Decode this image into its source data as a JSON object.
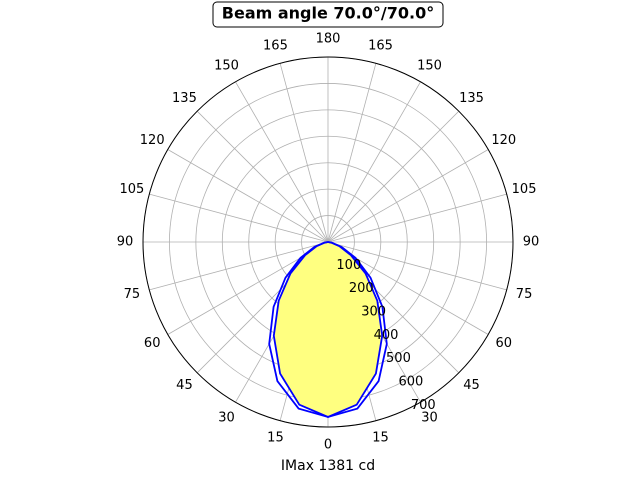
{
  "chart_data": {
    "type": "polar",
    "title": "Beam angle 70.0°/70.0°",
    "x_label": "IMax 1381 cd",
    "x": [
      -90,
      -80,
      -70,
      -60,
      -50,
      -40,
      -30,
      -20,
      -10,
      0,
      10,
      20,
      30,
      40,
      50,
      60,
      70,
      80,
      90
    ],
    "series": [
      {
        "color": "#0000ff",
        "values": [
          0,
          15,
          55,
          120,
          210,
          320,
          445,
          560,
          640,
          662,
          640,
          560,
          445,
          320,
          210,
          120,
          55,
          15,
          0
        ]
      },
      {
        "color": "#0000ff",
        "fill": "#ffff80",
        "values": [
          0,
          12,
          45,
          100,
          185,
          290,
          410,
          530,
          625,
          662,
          625,
          530,
          410,
          290,
          185,
          100,
          45,
          12,
          0
        ]
      }
    ],
    "rlim": [
      0,
      700
    ],
    "rticks": [
      100,
      200,
      300,
      400,
      500,
      600,
      700
    ],
    "thetaticks": [
      0,
      15,
      30,
      45,
      60,
      75,
      90,
      105,
      120,
      135,
      150,
      165,
      180,
      {
        "value": -165,
        "label": "165"
      },
      {
        "value": -150,
        "label": "150"
      },
      {
        "value": -135,
        "label": "135"
      },
      {
        "value": -120,
        "label": "120"
      },
      {
        "value": -105,
        "label": "105"
      },
      {
        "value": -90,
        "label": "90"
      },
      {
        "value": -75,
        "label": "75"
      },
      {
        "value": -60,
        "label": "60"
      },
      {
        "value": -45,
        "label": "45"
      },
      {
        "value": -30,
        "label": "30"
      },
      {
        "value": -15,
        "label": "15"
      }
    ],
    "grid": true
  }
}
